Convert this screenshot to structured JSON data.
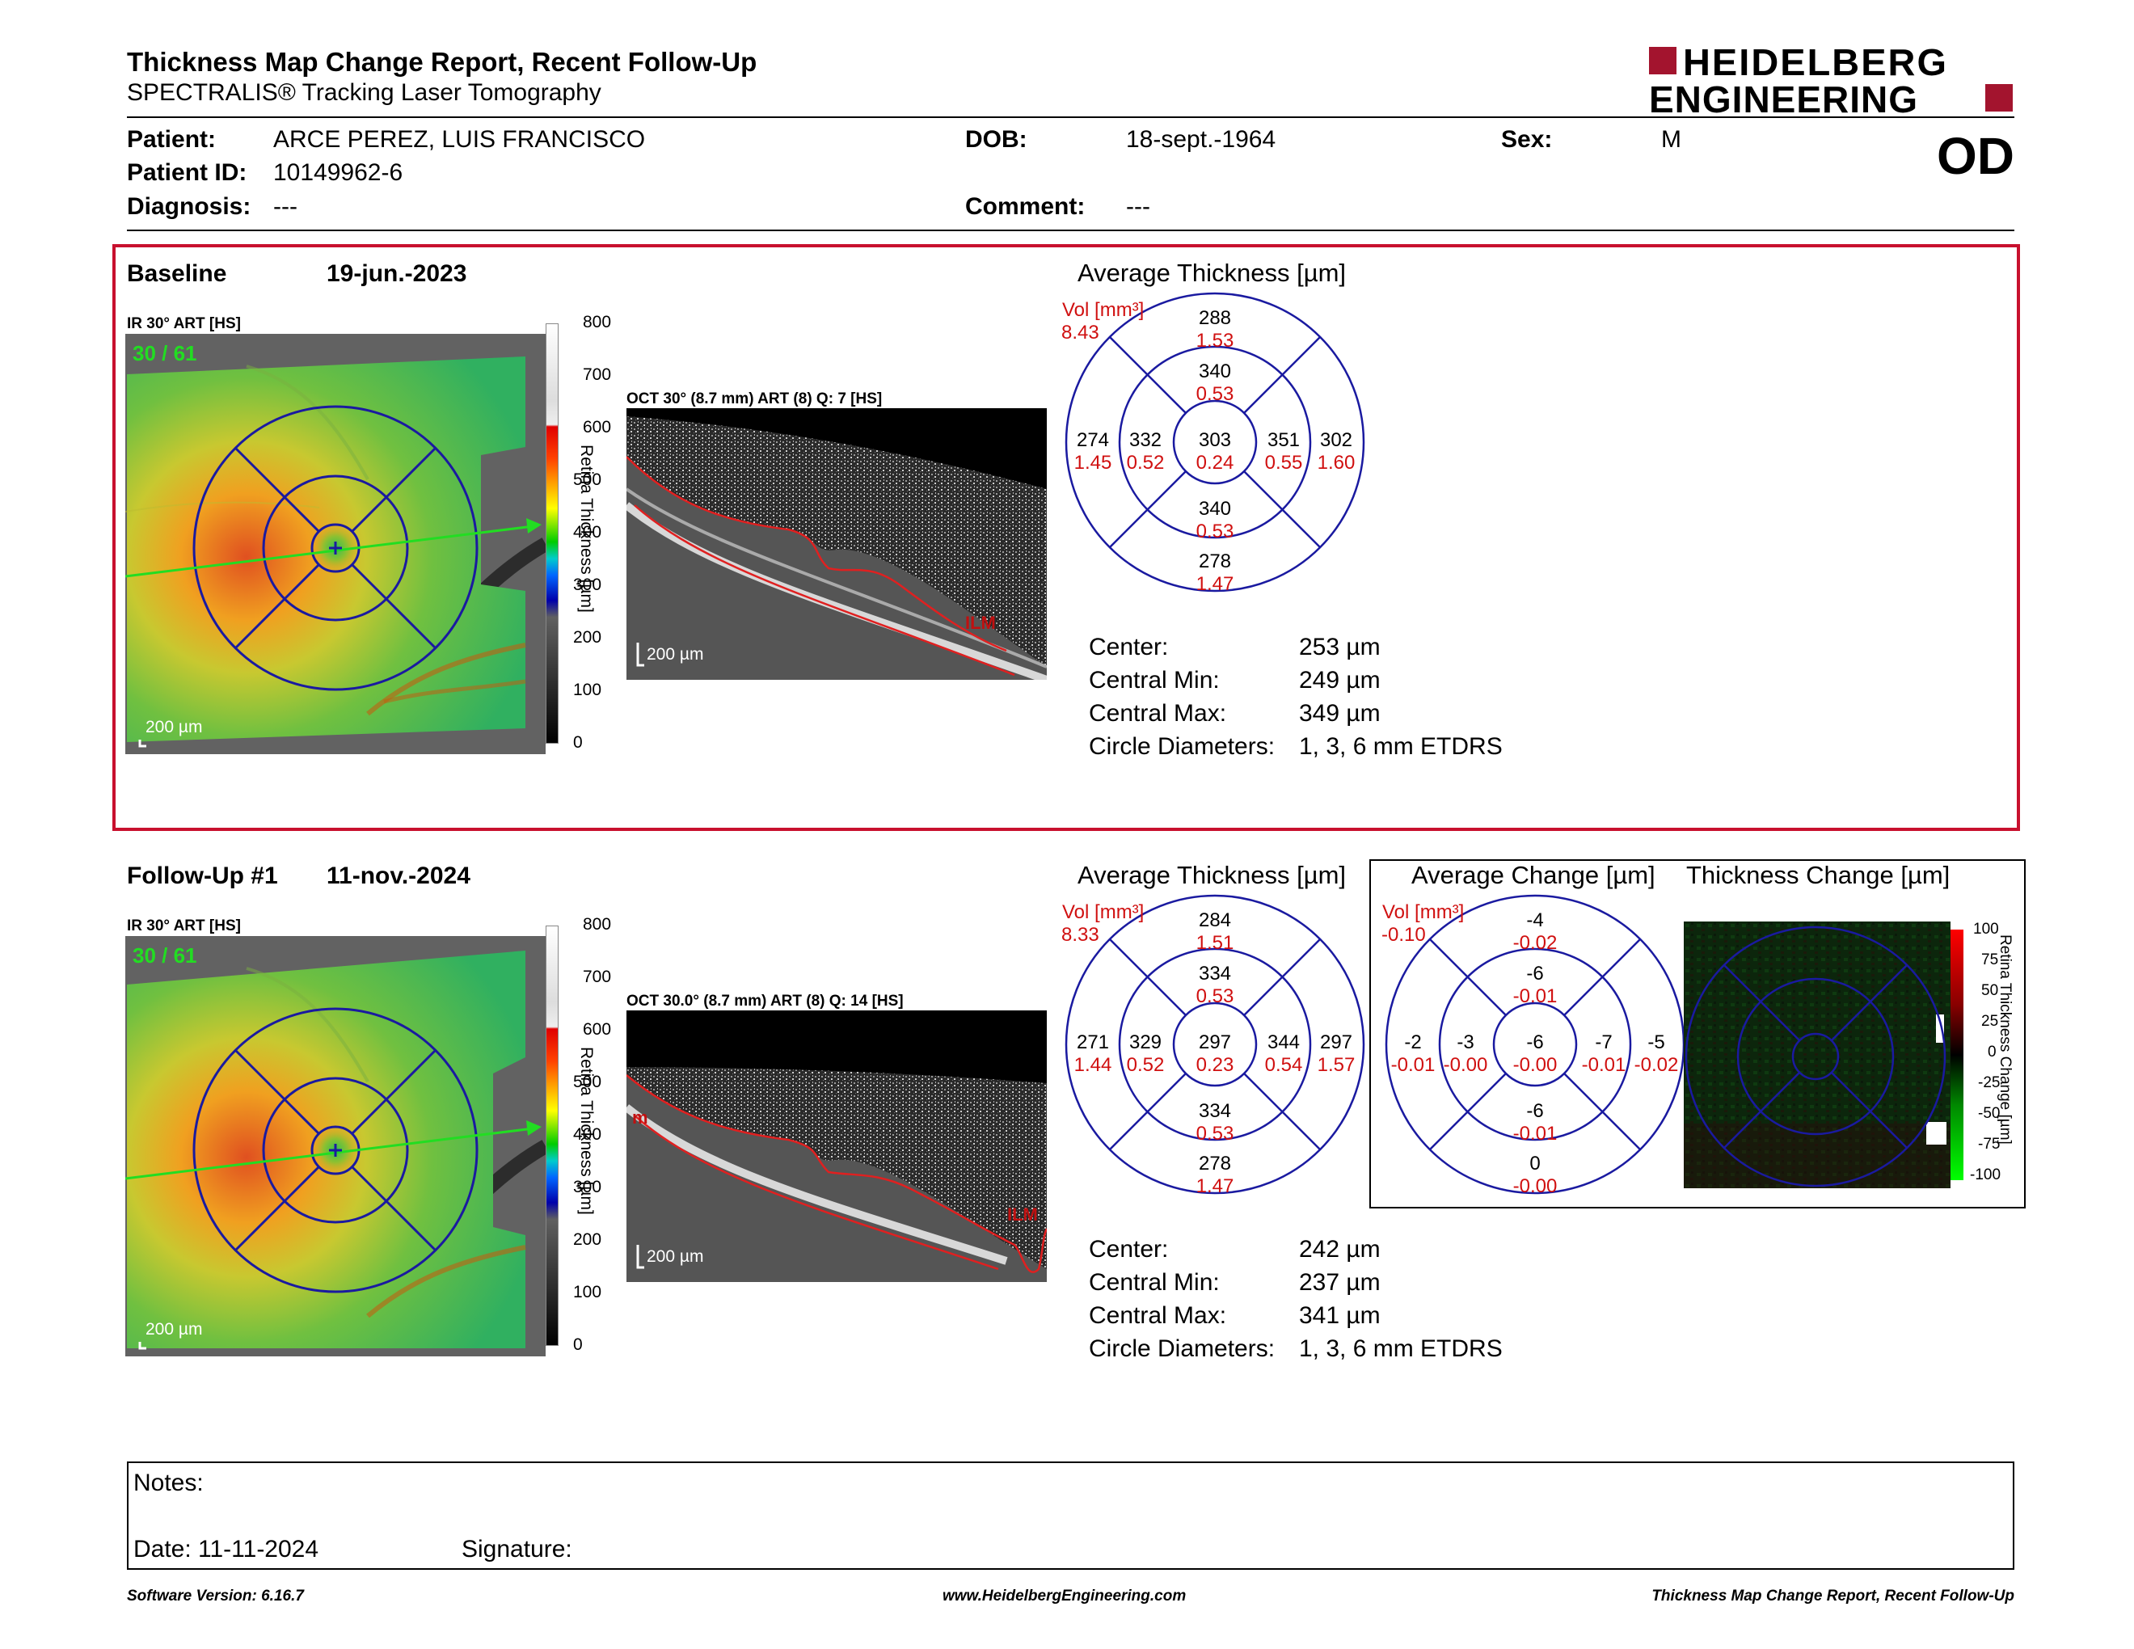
{
  "header": {
    "title": "Thickness Map Change Report, Recent Follow-Up",
    "subtitle": "SPECTRALIS® Tracking Laser Tomography",
    "logo_line1": "HEIDELBERG",
    "logo_line2": "ENGINEERING",
    "eye": "OD"
  },
  "patient": {
    "name_label": "Patient:",
    "name": "ARCE PEREZ, LUIS FRANCISCO",
    "id_label": "Patient ID:",
    "id": "10149962-6",
    "diagnosis_label": "Diagnosis:",
    "diagnosis": "---",
    "dob_label": "DOB:",
    "dob": "18-sept.-1964",
    "comment_label": "Comment:",
    "comment": "---",
    "sex_label": "Sex:",
    "sex": "M"
  },
  "colors": {
    "accent_red": "#c8102e",
    "grid_blue": "#1a1aa0",
    "value_red": "#d01010",
    "scan_green": "#22dd22"
  },
  "baseline": {
    "label": "Baseline",
    "date": "19-jun.-2023",
    "ir_label": "IR 30° ART [HS]",
    "ir_counter": "30 / 61",
    "scale_bar": "200 µm",
    "oct_label": "OCT 30° (8.7 mm) ART (8) Q: 7 [HS]",
    "oct_scale": "200 µm",
    "oct_marker": "ILM",
    "avg_title": "Average Thickness [µm]",
    "vol_label": "Vol [mm³]",
    "vol_value": "8.43",
    "etdrs": {
      "center": {
        "t": "303",
        "v": "0.24"
      },
      "inner_sup": {
        "t": "340",
        "v": "0.53"
      },
      "inner_inf": {
        "t": "340",
        "v": "0.53"
      },
      "inner_left": {
        "t": "332",
        "v": "0.52"
      },
      "inner_right": {
        "t": "351",
        "v": "0.55"
      },
      "outer_sup": {
        "t": "288",
        "v": "1.53"
      },
      "outer_inf": {
        "t": "278",
        "v": "1.47"
      },
      "outer_left": {
        "t": "274",
        "v": "1.45"
      },
      "outer_right": {
        "t": "302",
        "v": "1.60"
      }
    },
    "stats": [
      {
        "label": "Center:",
        "value": "253 µm"
      },
      {
        "label": "Central Min:",
        "value": "249 µm"
      },
      {
        "label": "Central Max:",
        "value": "349 µm"
      },
      {
        "label": "Circle Diameters:",
        "value": "1, 3, 6 mm ETDRS"
      }
    ]
  },
  "followup": {
    "label": "Follow-Up #1",
    "date": "11-nov.-2024",
    "ir_label": "IR 30° ART [HS]",
    "ir_counter": "30 / 61",
    "scale_bar": "200 µm",
    "oct_label": "OCT 30.0° (8.7 mm) ART (8) Q: 14 [HS]",
    "oct_scale": "200 µm",
    "oct_marker": "ILM",
    "oct_marker_left": "m",
    "avg_title": "Average Thickness [µm]",
    "vol_label": "Vol [mm³]",
    "vol_value": "8.33",
    "etdrs": {
      "center": {
        "t": "297",
        "v": "0.23"
      },
      "inner_sup": {
        "t": "334",
        "v": "0.53"
      },
      "inner_inf": {
        "t": "334",
        "v": "0.53"
      },
      "inner_left": {
        "t": "329",
        "v": "0.52"
      },
      "inner_right": {
        "t": "344",
        "v": "0.54"
      },
      "outer_sup": {
        "t": "284",
        "v": "1.51"
      },
      "outer_inf": {
        "t": "278",
        "v": "1.47"
      },
      "outer_left": {
        "t": "271",
        "v": "1.44"
      },
      "outer_right": {
        "t": "297",
        "v": "1.57"
      }
    },
    "stats": [
      {
        "label": "Center:",
        "value": "242 µm"
      },
      {
        "label": "Central Min:",
        "value": "237 µm"
      },
      {
        "label": "Central Max:",
        "value": "341 µm"
      },
      {
        "label": "Circle Diameters:",
        "value": "1, 3, 6 mm ETDRS"
      }
    ]
  },
  "change": {
    "avg_title": "Average Change [µm]",
    "map_title": "Thickness Change [µm]",
    "vol_label": "Vol [mm³]",
    "vol_value": "-0.10",
    "etdrs": {
      "center": {
        "t": "-6",
        "v": "-0.00"
      },
      "inner_sup": {
        "t": "-6",
        "v": "-0.01"
      },
      "inner_inf": {
        "t": "-6",
        "v": "-0.01"
      },
      "inner_left": {
        "t": "-3",
        "v": "-0.00"
      },
      "inner_right": {
        "t": "-7",
        "v": "-0.01"
      },
      "outer_sup": {
        "t": "-4",
        "v": "-0.02"
      },
      "outer_inf": {
        "t": "0",
        "v": "-0.00"
      },
      "outer_left": {
        "t": "-2",
        "v": "-0.01"
      },
      "outer_right": {
        "t": "-5",
        "v": "-0.02"
      }
    },
    "scale_ticks": [
      "100",
      "75",
      "50",
      "25",
      "0",
      "-25",
      "-50",
      "-75",
      "-100"
    ],
    "scale_title": "Retina Thickness Change [µm]"
  },
  "thickness_scale": {
    "ticks": [
      "800",
      "700",
      "600",
      "500",
      "400",
      "300",
      "200",
      "100",
      "0"
    ],
    "title": "Retina Thickness [µm]"
  },
  "notes": {
    "label": "Notes:",
    "date_label": "Date: 11-11-2024",
    "signature_label": "Signature:"
  },
  "footer": {
    "left": "Software Version: 6.16.7",
    "center": "www.HeidelbergEngineering.com",
    "right": "Thickness Map Change Report, Recent Follow-Up"
  }
}
